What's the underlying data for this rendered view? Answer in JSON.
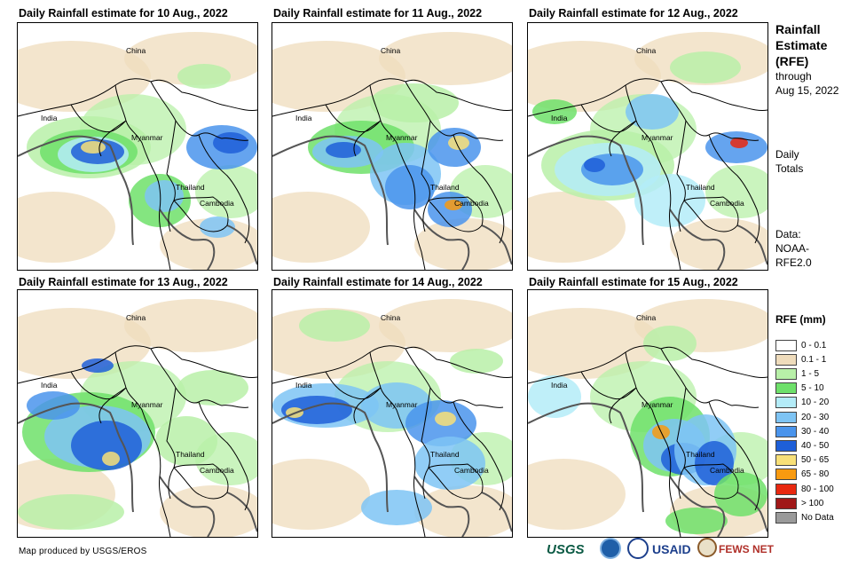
{
  "panels": [
    {
      "title": "Daily Rainfall estimate for 10 Aug., 2022",
      "labels": {
        "china": "China",
        "india": "India",
        "myanmar": "Myanmar",
        "thailand": "Thailand",
        "cambodia": "Cambodia"
      }
    },
    {
      "title": "Daily Rainfall estimate for 11 Aug., 2022",
      "labels": {
        "china": "China",
        "india": "India",
        "myanmar": "Myanmar",
        "thailand": "Thailand",
        "cambodia": "Cambodia"
      }
    },
    {
      "title": "Daily Rainfall estimate for 12 Aug., 2022",
      "labels": {
        "china": "China",
        "india": "India",
        "myanmar": "Myanmar",
        "thailand": "Thailand",
        "cambodia": "Cambodia"
      }
    },
    {
      "title": "Daily Rainfall estimate for 13 Aug., 2022",
      "labels": {
        "china": "China",
        "india": "India",
        "myanmar": "Myanmar",
        "thailand": "Thailand",
        "cambodia": "Cambodia"
      }
    },
    {
      "title": "Daily Rainfall estimate for 14 Aug., 2022",
      "labels": {
        "china": "China",
        "india": "India",
        "myanmar": "Myanmar",
        "thailand": "Thailand",
        "cambodia": "Cambodia"
      }
    },
    {
      "title": "Daily Rainfall estimate for 15 Aug., 2022",
      "labels": {
        "china": "China",
        "india": "India",
        "myanmar": "Myanmar",
        "thailand": "Thailand",
        "cambodia": "Cambodia"
      }
    }
  ],
  "sidebar": {
    "title_line1": "Rainfall",
    "title_line2": "Estimate",
    "title_line3": "(RFE)",
    "through": "through",
    "date": "Aug 15, 2022",
    "daily": "Daily",
    "totals": "Totals",
    "data_label": "Data:",
    "data_source1": "NOAA-",
    "data_source2": "RFE2.0"
  },
  "legend": {
    "title": "RFE (mm)",
    "items": [
      {
        "label": "0 - 0.1",
        "color": "#ffffff"
      },
      {
        "label": "0.1 - 1",
        "color": "#efdcbc"
      },
      {
        "label": "1 - 5",
        "color": "#b8f0a8"
      },
      {
        "label": "5 - 10",
        "color": "#6ee06a"
      },
      {
        "label": "10 - 20",
        "color": "#b4ecf8"
      },
      {
        "label": "20 - 30",
        "color": "#7ec4f4"
      },
      {
        "label": "30 - 40",
        "color": "#4a94ec"
      },
      {
        "label": "40 - 50",
        "color": "#1e5fd8"
      },
      {
        "label": "50 - 65",
        "color": "#f8e078"
      },
      {
        "label": "65 - 80",
        "color": "#f89a10"
      },
      {
        "label": "80 - 100",
        "color": "#e82810"
      },
      {
        "label": "> 100",
        "color": "#a01818"
      },
      {
        "label": "No Data",
        "color": "#9a9a9a"
      }
    ]
  },
  "footer": {
    "credit": "Map produced by USGS/EROS",
    "usgs": "USGS",
    "usaid": "USAID",
    "fews": "FEWS NET"
  }
}
